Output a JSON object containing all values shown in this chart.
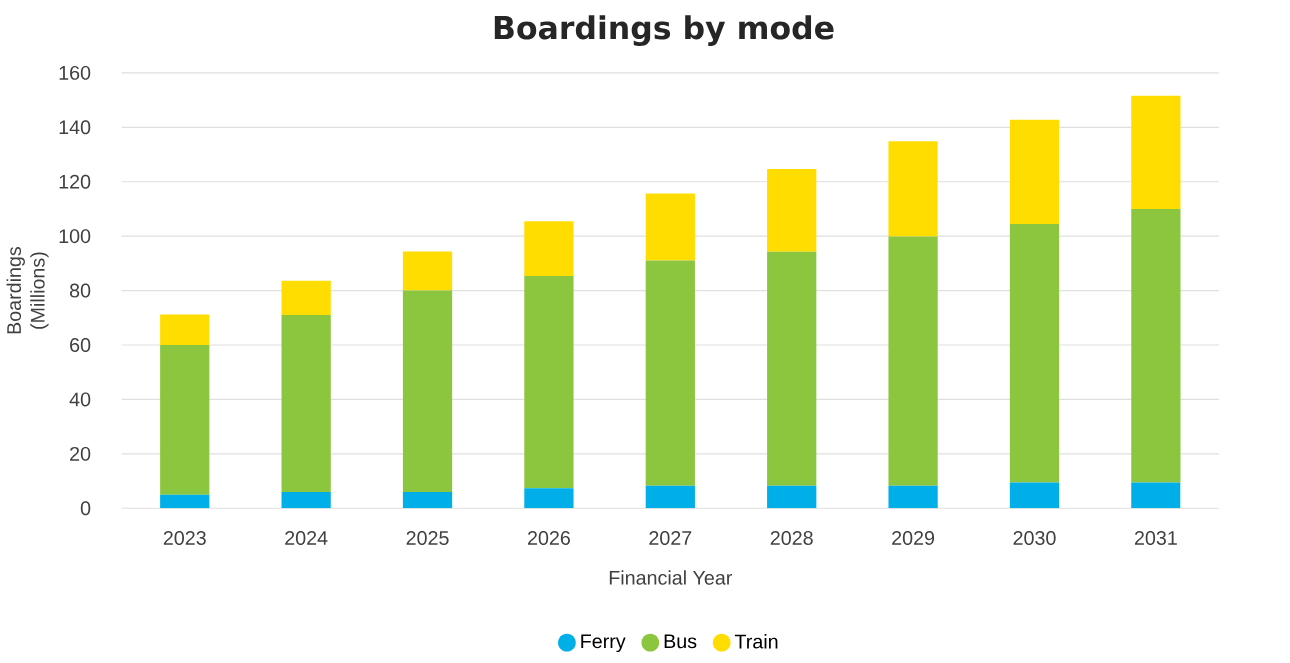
{
  "chart_data": {
    "type": "bar",
    "title": "Boardings by mode",
    "xlabel": "Financial Year",
    "ylabel": "Boardings (Millions)",
    "categories": [
      "2023",
      "2024",
      "2025",
      "2026",
      "2027",
      "2028",
      "2029",
      "2030",
      "2031"
    ],
    "stacked": true,
    "series": [
      {
        "name": "Ferry",
        "color": "#00aee8",
        "values": [
          5,
          6,
          6,
          7.4,
          8.3,
          8.3,
          8.3,
          9.5,
          9.5
        ]
      },
      {
        "name": "Bus",
        "color": "#8cc63f",
        "values": [
          55,
          65,
          74,
          78,
          82.8,
          86,
          91.6,
          95,
          100.5
        ]
      },
      {
        "name": "Train",
        "color": "#ffdd00",
        "values": [
          11.2,
          12.6,
          14.4,
          20.1,
          24.6,
          30.4,
          35,
          38.3,
          41.6
        ]
      }
    ],
    "ylim": [
      0,
      160
    ],
    "yticks": [
      0,
      20,
      40,
      60,
      80,
      100,
      120,
      140,
      160
    ],
    "grid": "y",
    "legend": "bottom"
  }
}
